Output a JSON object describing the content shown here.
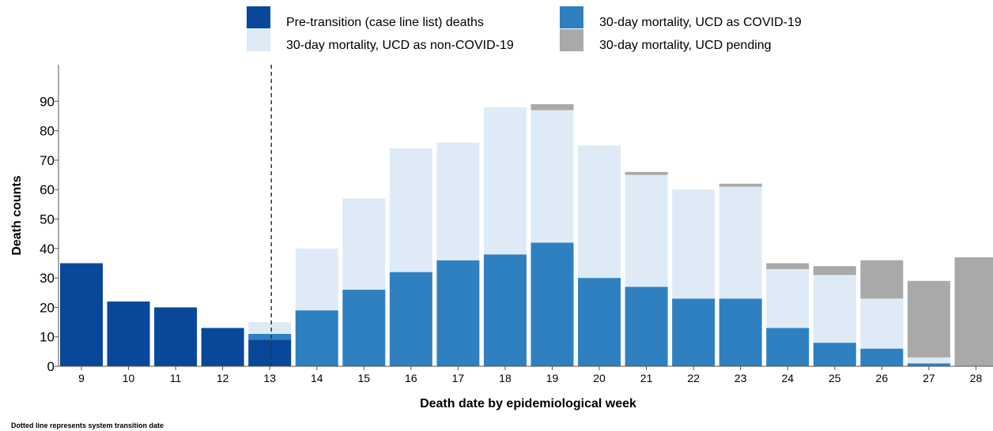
{
  "chart_data": {
    "type": "bar",
    "stacked": true,
    "categories": [
      "9",
      "10",
      "11",
      "12",
      "13",
      "14",
      "15",
      "16",
      "17",
      "18",
      "19",
      "20",
      "21",
      "22",
      "23",
      "24",
      "25",
      "26",
      "27",
      "28"
    ],
    "series": [
      {
        "name": "Pre-transition (case line list) deaths",
        "color": "#08479a",
        "values": [
          35,
          22,
          20,
          13,
          9,
          0,
          0,
          0,
          0,
          0,
          0,
          0,
          0,
          0,
          0,
          0,
          0,
          0,
          0,
          0
        ]
      },
      {
        "name": "30-day mortality, UCD as COVID-19",
        "color": "#2f80c1",
        "values": [
          0,
          0,
          0,
          0,
          2,
          19,
          26,
          32,
          36,
          38,
          42,
          30,
          27,
          23,
          23,
          13,
          8,
          6,
          1,
          0
        ]
      },
      {
        "name": "30-day mortality, UCD as non-COVID-19",
        "color": "#deebf7",
        "values": [
          0,
          0,
          0,
          0,
          4,
          21,
          31,
          42,
          40,
          50,
          45,
          45,
          38,
          37,
          38,
          20,
          23,
          17,
          2,
          0
        ]
      },
      {
        "name": "30-day mortality, UCD pending",
        "color": "#a9a9a9",
        "values": [
          0,
          0,
          0,
          0,
          0,
          0,
          0,
          0,
          0,
          0,
          2,
          0,
          1,
          0,
          1,
          2,
          3,
          13,
          26,
          37
        ]
      }
    ],
    "xlabel": "Death date by epidemiological week",
    "ylabel": "Death counts",
    "ylim": [
      0,
      100
    ],
    "yticks": [
      0,
      10,
      20,
      30,
      40,
      50,
      60,
      70,
      80,
      90
    ],
    "transition_week": "13",
    "legend_position": "top",
    "grid": false,
    "footnote": "Dotted line represents system transition date"
  }
}
